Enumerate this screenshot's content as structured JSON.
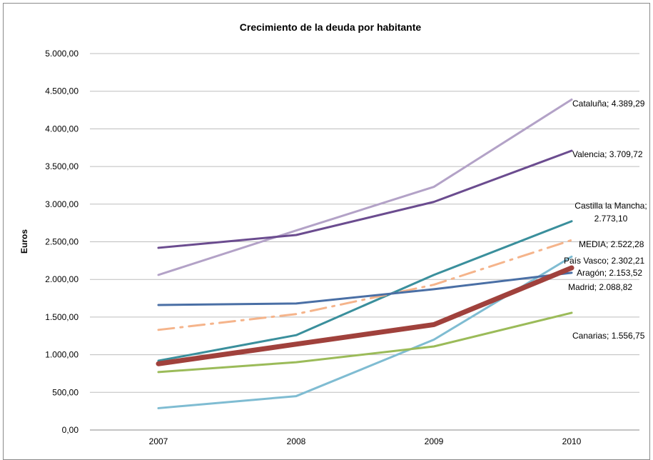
{
  "chart_data": {
    "type": "line",
    "title": "Crecimiento de la deuda por habitante",
    "xlabel": "",
    "ylabel": "Euros",
    "categories": [
      "2007",
      "2008",
      "2009",
      "2010"
    ],
    "ylim": [
      0,
      5000
    ],
    "y_ticks": [
      "0,00",
      "500,00",
      "1.000,00",
      "1.500,00",
      "2.000,00",
      "2.500,00",
      "3.000,00",
      "3.500,00",
      "4.000,00",
      "4.500,00",
      "5.000,00"
    ],
    "grid": "horizontal",
    "legend": "none",
    "series": [
      {
        "name": "Cataluña",
        "values": [
          2060,
          2650,
          3230,
          4389.29
        ],
        "color": "#b3a2c7",
        "label_lines": [
          "Cataluña; 4.389,29"
        ]
      },
      {
        "name": "Valencia",
        "values": [
          2420,
          2590,
          3030,
          3709.72
        ],
        "color": "#6b4c8f",
        "label_lines": [
          "Valencia; 3.709,72"
        ]
      },
      {
        "name": "Castilla la Mancha",
        "values": [
          920,
          1260,
          2060,
          2773.1
        ],
        "color": "#3a8f9c",
        "label_lines": [
          "Castilla la Mancha;",
          "2.773,10"
        ]
      },
      {
        "name": "MEDIA",
        "values": [
          1330,
          1540,
          1930,
          2522.28
        ],
        "color": "#f5b48b",
        "dashed": true,
        "label_lines": [
          "MEDIA; 2.522,28"
        ]
      },
      {
        "name": "País Vasco",
        "values": [
          290,
          450,
          1200,
          2302.21
        ],
        "color": "#7fbcd2",
        "label_lines": [
          "País Vasco; 2.302,21"
        ]
      },
      {
        "name": "Madrid",
        "values": [
          1660,
          1680,
          1870,
          2088.82
        ],
        "color": "#4a6fa5",
        "label_lines": [
          "Madrid; 2.088,82"
        ]
      },
      {
        "name": "Canarias",
        "values": [
          770,
          900,
          1110,
          1556.75
        ],
        "color": "#9bbb59",
        "label_lines": [
          "Canarias; 1.556,75"
        ]
      },
      {
        "name": "Aragón",
        "values": [
          880,
          1140,
          1400,
          2153.52
        ],
        "color": "#a0413c",
        "thick": true,
        "label_lines": [
          "Aragón; 2.153,52"
        ]
      }
    ]
  }
}
